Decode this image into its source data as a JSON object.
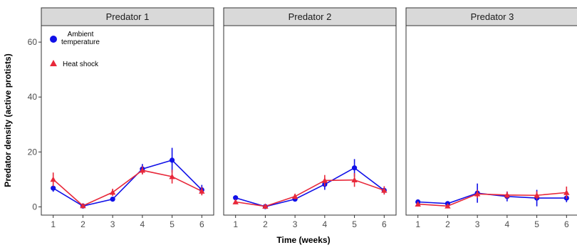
{
  "chart_data": {
    "type": "line",
    "xlabel": "Time (weeks)",
    "ylabel": "Predator density (active protists)",
    "x": [
      1,
      2,
      3,
      4,
      5,
      6
    ],
    "xlim": [
      0.6,
      6.4
    ],
    "ylim": [
      -3,
      66
    ],
    "yticks": [
      0,
      20,
      40,
      60
    ],
    "panels": [
      "Predator 1",
      "Predator 2",
      "Predator 3"
    ],
    "legend": {
      "position": "top-left (inside Predator 1 panel)",
      "entries": [
        {
          "key": "ambient",
          "label_lines": [
            "Ambient",
            "temperature"
          ],
          "marker": "circle",
          "color": "#1010e8"
        },
        {
          "key": "heat",
          "label_lines": [
            "Heat shock"
          ],
          "marker": "triangle",
          "color": "#e8283a"
        }
      ]
    },
    "series": [
      {
        "key": "ambient",
        "color": "#1010e8",
        "marker": "circle",
        "panels": [
          {
            "mean": [
              6.8,
              0.3,
              2.8,
              13.8,
              17.0,
              6.2
            ],
            "err": [
              1.3,
              0.4,
              0.8,
              1.8,
              4.5,
              1.8
            ]
          },
          {
            "mean": [
              3.3,
              0.1,
              2.8,
              8.2,
              14.2,
              6.0
            ],
            "err": [
              0.9,
              0.3,
              0.8,
              2.0,
              3.2,
              1.5
            ]
          },
          {
            "mean": [
              1.8,
              1.2,
              5.0,
              3.8,
              3.2,
              3.2
            ],
            "err": [
              0.6,
              0.5,
              3.5,
              1.8,
              3.0,
              1.5
            ]
          }
        ]
      },
      {
        "key": "heat",
        "color": "#e8283a",
        "marker": "triangle",
        "panels": [
          {
            "mean": [
              10.0,
              0.4,
              5.3,
              13.3,
              11.0,
              5.7
            ],
            "err": [
              2.5,
              0.3,
              1.3,
              1.5,
              2.5,
              1.5
            ]
          },
          {
            "mean": [
              1.8,
              0.2,
              3.8,
              9.6,
              9.8,
              6.0
            ],
            "err": [
              0.8,
              0.2,
              1.0,
              2.0,
              2.5,
              1.5
            ]
          },
          {
            "mean": [
              1.0,
              0.3,
              4.7,
              4.3,
              4.2,
              5.2
            ],
            "err": [
              0.4,
              0.3,
              1.5,
              1.2,
              1.5,
              2.2
            ]
          }
        ]
      }
    ]
  }
}
